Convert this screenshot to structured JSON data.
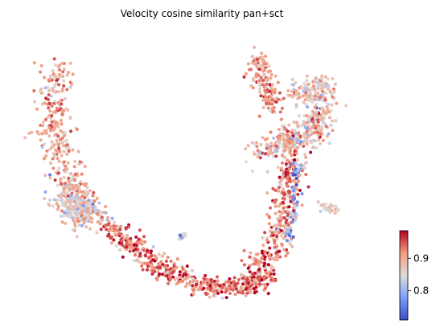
{
  "chart_data": {
    "type": "scatter",
    "title": "Velocity cosine similarity pan+sct",
    "xlabel": "",
    "ylabel": "",
    "axes_visible": false,
    "grid": false,
    "colormap": "coolwarm",
    "color_range": [
      0.71,
      0.985
    ],
    "colorbar": {
      "placement": "bottom-right",
      "ticks": [
        0.8,
        0.9
      ],
      "tick_labels": [
        "0.8",
        "0.9"
      ]
    },
    "x_range": [
      0,
      100
    ],
    "y_range": [
      0,
      100
    ],
    "clusters": [
      {
        "region": "left-arm",
        "path": [
          [
            10,
            88
          ],
          [
            7,
            75
          ],
          [
            8,
            62
          ],
          [
            12,
            50
          ],
          [
            15,
            42
          ]
        ],
        "spread": 4.5,
        "n": 320,
        "mean": 0.9,
        "sd": 0.035
      },
      {
        "region": "left-blob",
        "path": [
          [
            10,
            44
          ],
          [
            15,
            38
          ],
          [
            18,
            36
          ]
        ],
        "spread": 4.8,
        "n": 260,
        "mean": 0.86,
        "sd": 0.04
      },
      {
        "region": "bottom-arc",
        "path": [
          [
            22,
            33
          ],
          [
            30,
            25
          ],
          [
            40,
            16
          ],
          [
            50,
            11
          ],
          [
            60,
            12
          ],
          [
            66,
            15
          ]
        ],
        "spread": 3.3,
        "n": 520,
        "mean": 0.935,
        "sd": 0.04
      },
      {
        "region": "right-lower",
        "path": [
          [
            62,
            18
          ],
          [
            67,
            23
          ],
          [
            70,
            35
          ],
          [
            72,
            47
          ],
          [
            73,
            56
          ]
        ],
        "spread": 3.5,
        "n": 320,
        "mean": 0.925,
        "sd": 0.04
      },
      {
        "region": "right-main",
        "path": [
          [
            65,
            58
          ],
          [
            72,
            62
          ],
          [
            78,
            66
          ],
          [
            80,
            72
          ]
        ],
        "spread": 4.5,
        "n": 320,
        "mean": 0.88,
        "sd": 0.045
      },
      {
        "region": "right-top-arm",
        "path": [
          [
            63,
            92
          ],
          [
            65,
            82
          ],
          [
            68,
            72
          ]
        ],
        "spread": 3.0,
        "n": 150,
        "mean": 0.91,
        "sd": 0.03
      },
      {
        "region": "right-top-blob",
        "path": [
          [
            74,
            78
          ],
          [
            80,
            82
          ],
          [
            82,
            75
          ]
        ],
        "spread": 4.0,
        "n": 140,
        "mean": 0.87,
        "sd": 0.03
      },
      {
        "region": "right-tip",
        "path": [
          [
            80,
            40
          ],
          [
            85,
            38
          ]
        ],
        "spread": 1.5,
        "n": 30,
        "mean": 0.86,
        "sd": 0.02
      },
      {
        "region": "center-spot",
        "path": [
          [
            42,
            28
          ],
          [
            43,
            30
          ]
        ],
        "spread": 1.0,
        "n": 14,
        "mean": 0.83,
        "sd": 0.05
      },
      {
        "region": "right-stripe",
        "path": [
          [
            72,
            28
          ],
          [
            73,
            40
          ],
          [
            74,
            55
          ]
        ],
        "spread": 1.2,
        "n": 60,
        "mean": 0.8,
        "sd": 0.04
      }
    ]
  }
}
